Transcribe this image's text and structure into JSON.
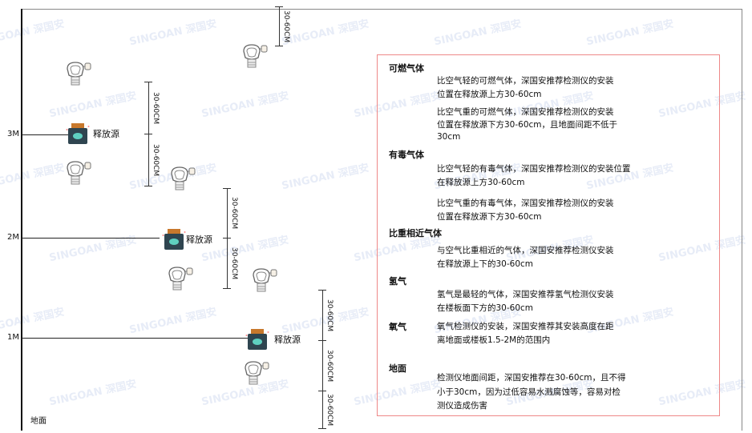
{
  "watermark": "SINGOAN 深国安",
  "levels": {
    "m3": "3M",
    "m2": "2M",
    "m1": "1M"
  },
  "ground_label": "地面",
  "dimension_label": "30-60CM",
  "source_label": "释放源",
  "colors": {
    "box_border": "#e88888",
    "source_body": "#2f4550",
    "source_cap": "#c8782c",
    "source_face": "#5fd0c0"
  },
  "notes": [
    {
      "heading": "可燃气体",
      "paragraphs": [
        [
          "比空气轻的可燃气体，深国安推荐检测仪的安装",
          "位置在释放源上方30-60cm"
        ],
        [
          "比空气重的可燃气体，深国安推荐检测仪的安装",
          "位置在释放源下方30-60cm，且地面间距不低于",
          "30cm"
        ]
      ]
    },
    {
      "heading": "有毒气体",
      "paragraphs": [
        [
          "比空气轻的有毒气体，深国安推荐检测仪的安装位置",
          "在释放源上方30-60cm"
        ],
        [
          "比空气重的有毒气体，深国安推荐检测仪的安装",
          "位置在释放源下方30-60cm"
        ]
      ]
    },
    {
      "heading": "比重相近气体",
      "paragraphs": [
        [
          "与空气比重相近的气体，深国安推荐检测仪安装",
          "在释放源上下的30-60cm"
        ]
      ]
    },
    {
      "heading": "氢气",
      "paragraphs": [
        [
          "氢气是最轻的气体，深国安推荐氢气检测仪安装",
          "在楼板面下方的30-60cm"
        ]
      ]
    },
    {
      "heading": "氧气",
      "paragraphs": [
        [
          "氧气检测仪的安装，深国安推荐其安装高度在距",
          "离地面或楼板1.5-2M的范围内"
        ]
      ]
    },
    {
      "heading": "地面",
      "paragraphs": [
        [
          "检测仪地面间距，深国安推荐在30-60cm，且不得",
          "小于30cm，因为过低容易水溅腐蚀等，容易对检",
          "测仪造成伤害"
        ]
      ]
    }
  ]
}
